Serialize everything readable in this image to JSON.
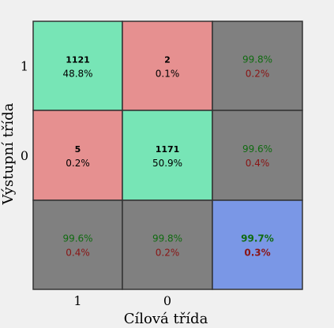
{
  "chart_data": {
    "type": "heatmap",
    "title": "",
    "xlabel": "Cílová třída",
    "ylabel": "Výstupní třída",
    "x_tick_labels": [
      "1",
      "0"
    ],
    "y_tick_labels": [
      "1",
      "0"
    ],
    "cells": [
      [
        {
          "count": "1121",
          "percent": "48.8%",
          "kind": "correct"
        },
        {
          "count": "2",
          "percent": "0.1%",
          "kind": "error"
        },
        {
          "pct_correct": "99.8%",
          "pct_wrong": "0.2%",
          "kind": "summary"
        }
      ],
      [
        {
          "count": "5",
          "percent": "0.2%",
          "kind": "error"
        },
        {
          "count": "1171",
          "percent": "50.9%",
          "kind": "correct"
        },
        {
          "pct_correct": "99.6%",
          "pct_wrong": "0.4%",
          "kind": "summary"
        }
      ],
      [
        {
          "pct_correct": "99.6%",
          "pct_wrong": "0.4%",
          "kind": "summary"
        },
        {
          "pct_correct": "99.8%",
          "pct_wrong": "0.2%",
          "kind": "summary"
        },
        {
          "pct_correct": "99.7%",
          "pct_wrong": "0.3%",
          "kind": "total"
        }
      ]
    ],
    "colors": {
      "correct": "#77e5b6",
      "error": "#e69090",
      "summary": "#808080",
      "total": "#7a97e6",
      "border": "#333333",
      "pct_correct_text": "#106b10",
      "pct_wrong_text": "#8a1414",
      "text": "#000000",
      "background": "#f0f0f0"
    }
  }
}
